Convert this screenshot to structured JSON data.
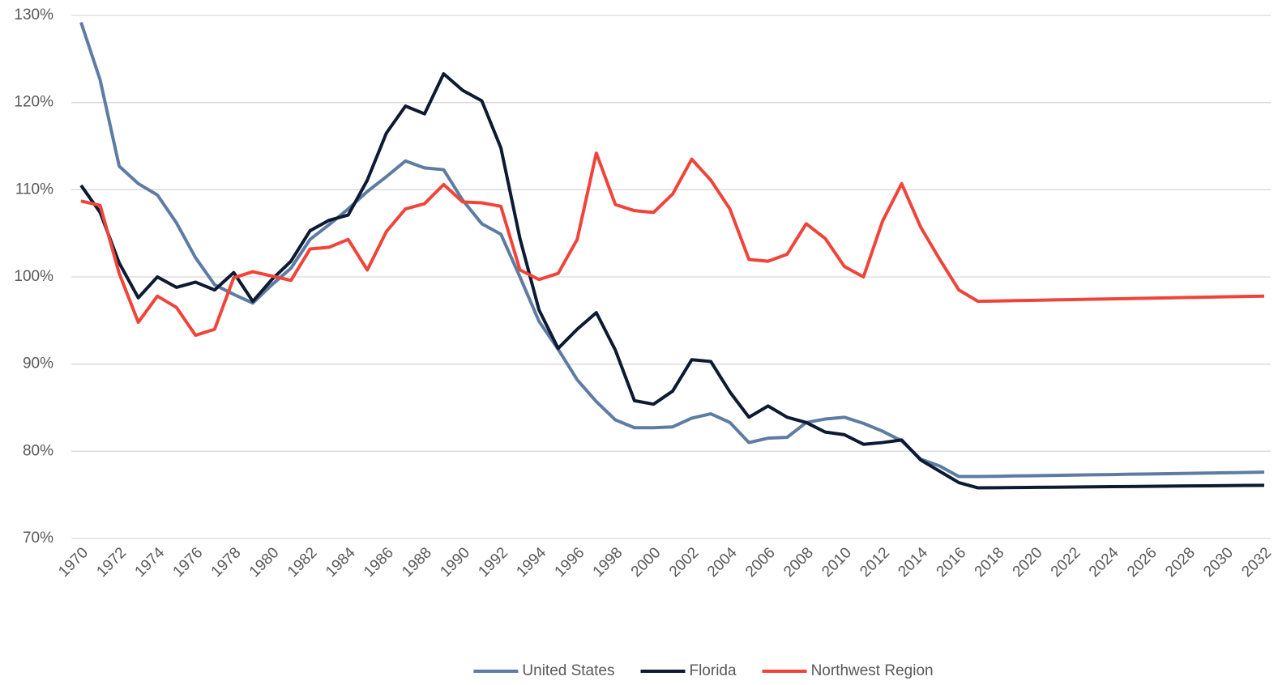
{
  "chart_data": {
    "type": "line",
    "categories": [
      "1970",
      null,
      "1972",
      null,
      "1974",
      null,
      "1976",
      null,
      "1978",
      null,
      "1980",
      null,
      "1982",
      null,
      "1984",
      null,
      "1986",
      null,
      "1988",
      null,
      "1990",
      null,
      "1992",
      null,
      "1994",
      null,
      "1996",
      null,
      "1998",
      null,
      "2000",
      null,
      "2002",
      null,
      "2004",
      null,
      "2006",
      null,
      "2008",
      null,
      "2010",
      null,
      "2012",
      null,
      "2014",
      null,
      "2016",
      null,
      "2018",
      null,
      "2020",
      null,
      "2022",
      null,
      "2024",
      null,
      "2026",
      null,
      "2028",
      null,
      "2030",
      null,
      "2032"
    ],
    "series": [
      {
        "name": "United States",
        "color": "#5d7ca3",
        "values": [
          129.2,
          122.6,
          112.7,
          110.7,
          109.4,
          106.2,
          102.2,
          99.1,
          98.0,
          97.0,
          99.1,
          101.0,
          104.3,
          106.0,
          107.8,
          109.8,
          111.5,
          113.3,
          112.5,
          112.3,
          108.8,
          106.1,
          104.9,
          100.0,
          94.9,
          91.7,
          88.2,
          85.7,
          83.6,
          82.7,
          82.7,
          82.8,
          83.8,
          84.3,
          83.3,
          81.0,
          81.5,
          81.6,
          83.3,
          83.7,
          83.9,
          83.2,
          82.3,
          81.2,
          79.1,
          78.3,
          77.1,
          77.1,
          77.13,
          77.17,
          77.2,
          77.23,
          77.27,
          77.3,
          77.33,
          77.37,
          77.4,
          77.43,
          77.47,
          77.5,
          77.53,
          77.57,
          77.6
        ]
      },
      {
        "name": "Florida",
        "color": "#0d1a33",
        "values": [
          110.5,
          107.4,
          101.6,
          97.6,
          100.0,
          98.8,
          99.4,
          98.5,
          100.5,
          97.2,
          99.7,
          101.8,
          105.3,
          106.5,
          107.1,
          111.1,
          116.5,
          119.6,
          118.7,
          123.3,
          121.4,
          120.2,
          114.8,
          104.4,
          96.2,
          91.8,
          94.0,
          95.9,
          91.6,
          85.8,
          85.4,
          86.9,
          90.5,
          90.3,
          86.8,
          83.9,
          85.2,
          83.9,
          83.3,
          82.2,
          81.9,
          80.8,
          81.0,
          81.3,
          79.0,
          77.7,
          76.4,
          75.8,
          75.82,
          75.84,
          75.86,
          75.88,
          75.9,
          75.92,
          75.94,
          75.96,
          75.98,
          76.0,
          76.02,
          76.04,
          76.06,
          76.08,
          76.1
        ]
      },
      {
        "name": "Northwest Region",
        "color": "#f0443a",
        "values": [
          108.7,
          108.2,
          100.4,
          94.8,
          97.8,
          96.5,
          93.3,
          94.0,
          99.9,
          100.6,
          100.1,
          99.6,
          103.2,
          103.4,
          104.3,
          100.8,
          105.2,
          107.8,
          108.4,
          110.6,
          108.6,
          108.5,
          108.1,
          100.8,
          99.7,
          100.4,
          104.3,
          114.2,
          108.3,
          107.6,
          107.4,
          109.5,
          113.5,
          111.1,
          107.8,
          102.0,
          101.8,
          102.6,
          106.1,
          104.4,
          101.2,
          100.0,
          106.4,
          110.7,
          105.7,
          102.0,
          98.5,
          97.2,
          97.24,
          97.28,
          97.32,
          97.36,
          97.4,
          97.44,
          97.48,
          97.52,
          97.56,
          97.6,
          97.64,
          97.68,
          97.72,
          97.76,
          97.8
        ]
      }
    ],
    "ylim": [
      70,
      130
    ],
    "yticks": [
      {
        "value": 70,
        "label": "70%"
      },
      {
        "value": 80,
        "label": "80%"
      },
      {
        "value": 90,
        "label": "90%"
      },
      {
        "value": 100,
        "label": "100%"
      },
      {
        "value": 110,
        "label": "110%"
      },
      {
        "value": 120,
        "label": "120%"
      },
      {
        "value": 130,
        "label": "130%"
      }
    ],
    "grid": true,
    "legend": "bottom"
  }
}
